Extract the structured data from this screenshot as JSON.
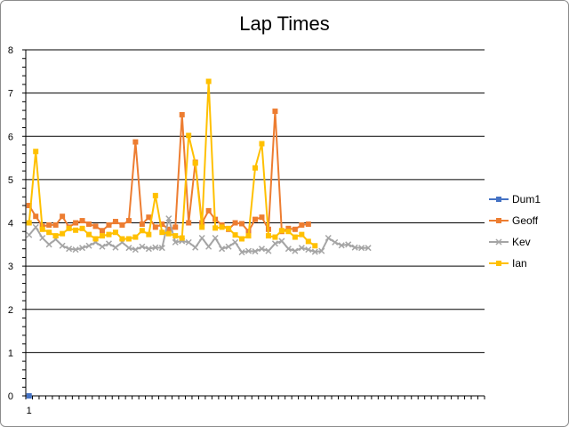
{
  "chart_data": {
    "type": "line",
    "title": "Lap Times",
    "ylim": [
      0,
      8
    ],
    "yticks": [
      "0",
      "1",
      "2",
      "3",
      "4",
      "5",
      "6",
      "7",
      "8"
    ],
    "xtick_labels": [
      "1"
    ],
    "grid": true,
    "legend_position": "right",
    "series": [
      {
        "name": "Dum1",
        "color": "#4472c4",
        "marker": "square",
        "values": [
          0
        ]
      },
      {
        "name": "Geoff",
        "color": "#ed7d31",
        "marker": "square",
        "values": [
          4.4,
          4.15,
          3.92,
          3.95,
          3.95,
          4.15,
          3.9,
          4.0,
          4.05,
          3.97,
          3.92,
          3.82,
          3.95,
          4.03,
          3.95,
          4.05,
          5.87,
          3.97,
          4.13,
          3.9,
          3.97,
          3.85,
          3.9,
          6.5,
          4.0,
          5.4,
          4.0,
          4.28,
          4.08,
          3.95,
          3.85,
          4.0,
          3.98,
          3.8,
          4.08,
          4.13,
          3.85,
          6.58,
          3.8,
          3.87,
          3.85,
          3.95,
          3.97
        ]
      },
      {
        "name": "Kev",
        "color": "#a5a5a5",
        "marker": "x",
        "values": [
          3.72,
          3.9,
          3.65,
          3.5,
          3.62,
          3.47,
          3.4,
          3.38,
          3.42,
          3.47,
          3.55,
          3.45,
          3.52,
          3.43,
          3.55,
          3.42,
          3.38,
          3.45,
          3.4,
          3.43,
          3.42,
          4.1,
          3.55,
          3.58,
          3.55,
          3.43,
          3.65,
          3.45,
          3.65,
          3.4,
          3.45,
          3.55,
          3.32,
          3.35,
          3.34,
          3.4,
          3.35,
          3.52,
          3.58,
          3.4,
          3.35,
          3.42,
          3.38,
          3.33,
          3.35,
          3.65,
          3.55,
          3.48,
          3.5,
          3.43,
          3.42,
          3.42
        ]
      },
      {
        "name": "Ian",
        "color": "#ffc000",
        "marker": "square",
        "values": [
          4.0,
          5.65,
          3.85,
          3.78,
          3.7,
          3.75,
          3.87,
          3.83,
          3.87,
          3.73,
          3.63,
          3.7,
          3.73,
          3.78,
          3.63,
          3.63,
          3.67,
          3.82,
          3.73,
          4.63,
          3.78,
          3.75,
          3.7,
          3.65,
          6.02,
          5.38,
          3.9,
          7.27,
          3.88,
          3.9,
          3.87,
          3.72,
          3.63,
          3.7,
          5.27,
          5.83,
          3.7,
          3.67,
          3.82,
          3.8,
          3.67,
          3.73,
          3.57,
          3.47
        ]
      }
    ]
  }
}
